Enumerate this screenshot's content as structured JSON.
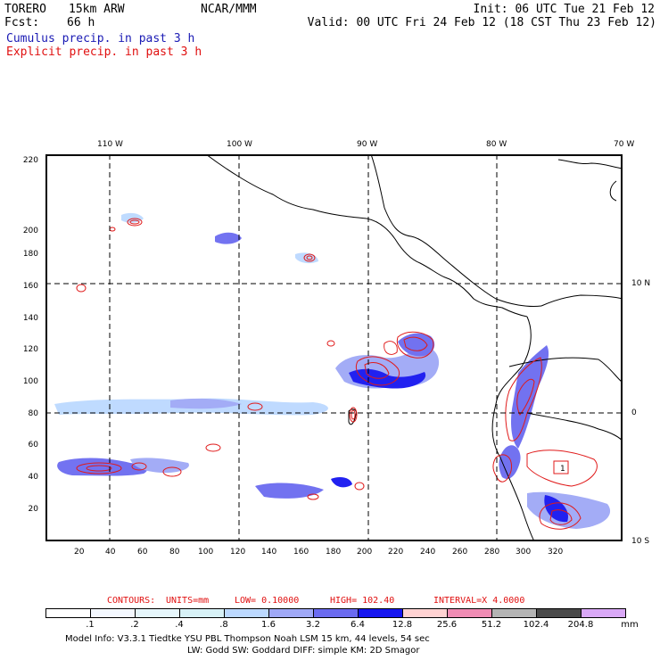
{
  "header": {
    "model_name": "TORERO",
    "resolution": "15km ARW",
    "org": "NCAR/MMM",
    "init": "Init: 06 UTC Tue 21 Feb 12",
    "fcst_label": "Fcst:",
    "fcst_value": "66 h",
    "valid": "Valid: 00 UTC Fri 24 Feb 12 (18 CST Thu 23 Feb 12)",
    "line_cumulus": "Cumulus precip. in past 3 h",
    "line_explicit": "Explicit precip. in past 3 h"
  },
  "colors": {
    "cumulus_label": "#1a1ab4",
    "explicit_label": "#e01010",
    "contour": "#e01a1a",
    "grid": "#000000"
  },
  "lon_labels": [
    "110 W",
    "100 W",
    "90 W",
    "80 W",
    "70 W"
  ],
  "lat_labels": [
    "10 N",
    "0",
    "10 S"
  ],
  "x_ticks": [
    "20",
    "40",
    "60",
    "80",
    "100",
    "120",
    "140",
    "160",
    "180",
    "200",
    "220",
    "240",
    "260",
    "280",
    "300",
    "320"
  ],
  "y_ticks": [
    "20",
    "40",
    "60",
    "80",
    "100",
    "120",
    "140",
    "160",
    "180",
    "200",
    "220"
  ],
  "map_point_label": "1",
  "contours": {
    "label": "CONTOURS:",
    "units": "UNITS=mm",
    "low": "LOW= 0.10000",
    "high": "HIGH= 102.40",
    "interval": "INTERVAL=X 4.0000"
  },
  "colorbar": {
    "labels": [
      ".1",
      ".2",
      ".4",
      ".8",
      "1.6",
      "3.2",
      "6.4",
      "12.8",
      "25.6",
      "51.2",
      "102.4",
      "204.8"
    ],
    "unit": "mm",
    "colors": [
      "#ffffff",
      "#f4f8ff",
      "#e6f6fb",
      "#d7f1f6",
      "#bcd9ff",
      "#9fa8f6",
      "#6b6bf0",
      "#1616f0",
      "#ffd2d2",
      "#f08cb4",
      "#b4b4b4",
      "#4a4a4a",
      "#d9a8f6"
    ]
  },
  "footer": {
    "line1": "Model Info: V3.3.1    Tiedtke YSU PBL  Thompson     Noah LSM  15 km,   44 levels,   54 sec",
    "line2": "LW: Godd SW: Goddard DIFF: simple KM: 2D Smagor"
  }
}
